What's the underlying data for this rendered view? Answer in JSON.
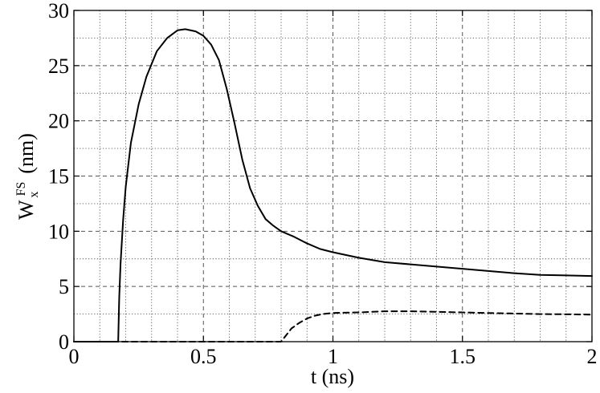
{
  "chart_data": {
    "type": "line",
    "xlabel": "t (ns)",
    "ylabel": {
      "base": "W",
      "superscript": "FS",
      "subscript": "x",
      "unit": "(nm)"
    },
    "xlim": [
      0,
      2
    ],
    "ylim": [
      0,
      30
    ],
    "x_ticks": [
      0,
      0.5,
      1,
      1.5,
      2
    ],
    "x_tick_labels": [
      "0",
      "0.5",
      "1",
      "1.5",
      "2"
    ],
    "y_ticks": [
      0,
      5,
      10,
      15,
      20,
      25,
      30
    ],
    "y_tick_labels": [
      "0",
      "5",
      "10",
      "15",
      "20",
      "25",
      "30"
    ],
    "grid": {
      "major": "dashed",
      "minor": "dotted",
      "x_minor_step": 0.1,
      "y_minor_step": 2.5
    },
    "legend": "none",
    "series": [
      {
        "style": "solid",
        "color": "#000000",
        "points": [
          [
            0,
            0
          ],
          [
            0.17,
            0
          ],
          [
            0.171,
            0
          ],
          [
            0.175,
            4
          ],
          [
            0.18,
            7
          ],
          [
            0.19,
            11
          ],
          [
            0.2,
            14
          ],
          [
            0.22,
            18
          ],
          [
            0.25,
            21.5
          ],
          [
            0.28,
            24
          ],
          [
            0.32,
            26.3
          ],
          [
            0.36,
            27.5
          ],
          [
            0.4,
            28.2
          ],
          [
            0.43,
            28.3
          ],
          [
            0.47,
            28.1
          ],
          [
            0.5,
            27.7
          ],
          [
            0.53,
            26.9
          ],
          [
            0.56,
            25.5
          ],
          [
            0.59,
            22.9
          ],
          [
            0.62,
            19.8
          ],
          [
            0.65,
            16.5
          ],
          [
            0.68,
            13.9
          ],
          [
            0.71,
            12.3
          ],
          [
            0.74,
            11.1
          ],
          [
            0.77,
            10.5
          ],
          [
            0.8,
            10
          ],
          [
            0.85,
            9.5
          ],
          [
            0.9,
            8.9
          ],
          [
            0.95,
            8.4
          ],
          [
            1.0,
            8.1
          ],
          [
            1.1,
            7.6
          ],
          [
            1.2,
            7.2
          ],
          [
            1.3,
            7.0
          ],
          [
            1.4,
            6.8
          ],
          [
            1.5,
            6.6
          ],
          [
            1.6,
            6.4
          ],
          [
            1.7,
            6.2
          ],
          [
            1.8,
            6.05
          ],
          [
            1.9,
            6.0
          ],
          [
            2.0,
            5.95
          ]
        ]
      },
      {
        "style": "dashed",
        "color": "#000000",
        "points": [
          [
            0,
            0
          ],
          [
            0.8,
            0
          ],
          [
            0.82,
            0.6
          ],
          [
            0.84,
            1.2
          ],
          [
            0.87,
            1.7
          ],
          [
            0.9,
            2.1
          ],
          [
            0.93,
            2.35
          ],
          [
            0.96,
            2.5
          ],
          [
            1.0,
            2.6
          ],
          [
            1.1,
            2.65
          ],
          [
            1.2,
            2.75
          ],
          [
            1.3,
            2.75
          ],
          [
            1.4,
            2.7
          ],
          [
            1.5,
            2.65
          ],
          [
            1.6,
            2.6
          ],
          [
            1.7,
            2.55
          ],
          [
            1.8,
            2.5
          ],
          [
            1.9,
            2.48
          ],
          [
            2.0,
            2.45
          ]
        ]
      }
    ]
  }
}
